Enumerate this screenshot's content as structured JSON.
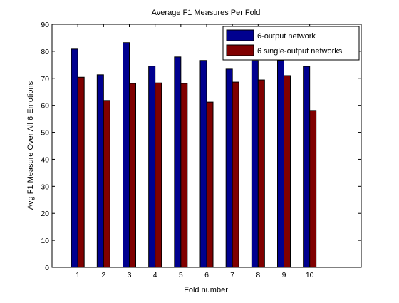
{
  "chart_data": {
    "type": "bar",
    "title": "Average F1 Measures Per Fold",
    "xlabel": "Fold number",
    "ylabel": "Avg F1 Measure Over All 6 Emotions",
    "categories": [
      "1",
      "2",
      "3",
      "4",
      "5",
      "6",
      "7",
      "8",
      "9",
      "10"
    ],
    "xlim": [
      0,
      12
    ],
    "ylim": [
      0,
      90
    ],
    "yticks": [
      "0",
      "10",
      "20",
      "30",
      "40",
      "50",
      "60",
      "70",
      "80",
      "90"
    ],
    "grid": false,
    "legend_position": "top-right",
    "series": [
      {
        "name": "6-output network",
        "color": "#00008f",
        "values": [
          80.8,
          71.3,
          83.2,
          74.5,
          77.9,
          76.6,
          73.4,
          76.5,
          76.6,
          74.4
        ]
      },
      {
        "name": "6 single-output networks",
        "color": "#800000",
        "values": [
          70.4,
          61.8,
          68.1,
          68.3,
          68.1,
          61.2,
          68.6,
          69.4,
          71.0,
          58.1
        ]
      }
    ]
  }
}
